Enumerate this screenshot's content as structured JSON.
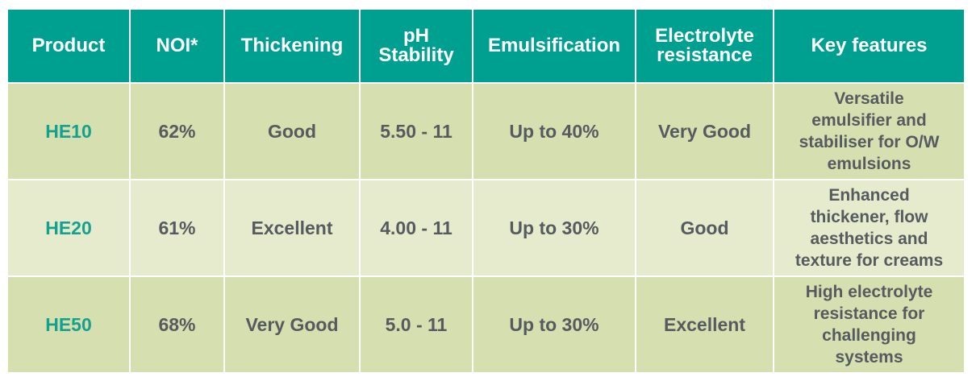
{
  "table": {
    "headers": {
      "product": "Product",
      "noi": "NOI*",
      "thickening": "Thickening",
      "ph_line1": "pH",
      "ph_line2": "Stability",
      "emulsification": "Emulsification",
      "electrolyte_line1": "Electrolyte",
      "electrolyte_line2": "resistance",
      "features": "Key features"
    },
    "rows": [
      {
        "product": "HE10",
        "noi": "62%",
        "thickening": "Good",
        "ph": "5.50 - 11",
        "emulsification": "Up to 40%",
        "electrolyte": "Very Good",
        "features": [
          "Versatile",
          "emulsifier and",
          "stabiliser for O/W",
          "emulsions"
        ]
      },
      {
        "product": "HE20",
        "noi": "61%",
        "thickening": "Excellent",
        "ph": "4.00 - 11",
        "emulsification": "Up to 30%",
        "electrolyte": "Good",
        "features": [
          "Enhanced",
          "thickener, flow",
          "aesthetics and",
          "texture for creams"
        ]
      },
      {
        "product": "HE50",
        "noi": "68%",
        "thickening": "Very Good",
        "ph": "5.0 - 11",
        "emulsification": "Up to 30%",
        "electrolyte": "Excellent",
        "features": [
          "High electrolyte",
          "resistance for",
          "challenging",
          "systems"
        ]
      }
    ]
  },
  "colors": {
    "header_bg": "#00a091",
    "header_text": "#ffffff",
    "row_dark_bg": "#d6dfb0",
    "row_light_bg": "#e6ebcd",
    "product_text": "#15a08f",
    "body_text": "#555b5e"
  }
}
